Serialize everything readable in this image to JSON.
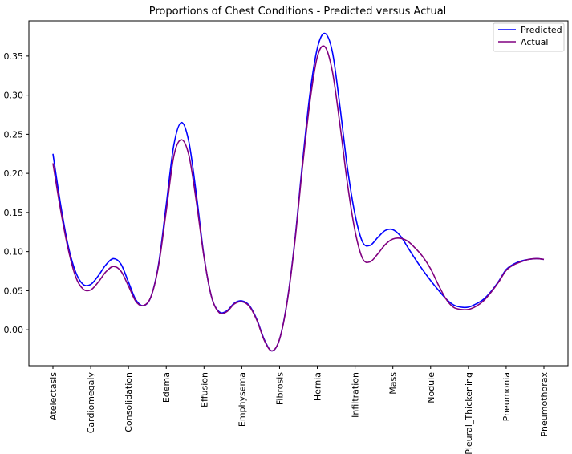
{
  "chart_data": {
    "type": "line",
    "title": "Proportions of Chest Conditions - Predicted versus Actual",
    "xlabel": "",
    "ylabel": "",
    "categories": [
      "Atelectasis",
      "Cardiomegaly",
      "Consolidation",
      "Edema",
      "Effusion",
      "Emphysema",
      "Fibrosis",
      "Hernia",
      "Infiltration",
      "Mass",
      "Nodule",
      "Pleural_Thickening",
      "Pneumonia",
      "Pneumothorax"
    ],
    "ylim": [
      -0.046,
      0.395
    ],
    "yticks": [
      0.0,
      0.05,
      0.1,
      0.15,
      0.2,
      0.25,
      0.3,
      0.35
    ],
    "ytick_labels": [
      "0.00",
      "0.05",
      "0.10",
      "0.15",
      "0.20",
      "0.25",
      "0.30",
      "0.35"
    ],
    "grid": false,
    "legend_position": "top-right",
    "series": [
      {
        "name": "Predicted",
        "color": "#0000ff",
        "x": [
          0,
          0.2,
          0.4,
          0.6,
          0.8,
          1.0,
          1.2,
          1.4,
          1.6,
          1.8,
          2.0,
          2.2,
          2.4,
          2.6,
          2.8,
          3.0,
          3.2,
          3.4,
          3.6,
          3.8,
          4.0,
          4.2,
          4.4,
          4.6,
          4.8,
          5.0,
          5.2,
          5.4,
          5.6,
          5.8,
          6.0,
          6.2,
          6.4,
          6.6,
          6.8,
          7.0,
          7.2,
          7.4,
          7.6,
          7.8,
          8.0,
          8.2,
          8.4,
          8.6,
          8.8,
          9.0,
          9.2,
          9.4,
          9.6,
          9.8,
          10.0,
          10.2,
          10.4,
          10.6,
          10.8,
          11.0,
          11.2,
          11.4,
          11.6,
          11.8,
          12.0,
          12.2,
          12.4,
          12.6,
          12.8,
          13.0
        ],
        "y": [
          0.225,
          0.161,
          0.108,
          0.074,
          0.058,
          0.058,
          0.069,
          0.083,
          0.091,
          0.084,
          0.061,
          0.038,
          0.031,
          0.043,
          0.085,
          0.16,
          0.236,
          0.265,
          0.24,
          0.172,
          0.094,
          0.042,
          0.023,
          0.024,
          0.034,
          0.037,
          0.031,
          0.013,
          -0.013,
          -0.027,
          -0.012,
          0.036,
          0.112,
          0.21,
          0.3,
          0.36,
          0.379,
          0.355,
          0.285,
          0.206,
          0.147,
          0.112,
          0.108,
          0.118,
          0.127,
          0.128,
          0.12,
          0.105,
          0.09,
          0.076,
          0.063,
          0.051,
          0.04,
          0.032,
          0.029,
          0.029,
          0.033,
          0.039,
          0.049,
          0.062,
          0.077,
          0.084,
          0.088,
          0.09,
          0.091,
          0.09
        ]
      },
      {
        "name": "Actual",
        "color": "#800080",
        "x": [
          0,
          0.2,
          0.4,
          0.6,
          0.8,
          1.0,
          1.2,
          1.4,
          1.6,
          1.8,
          2.0,
          2.2,
          2.4,
          2.6,
          2.8,
          3.0,
          3.2,
          3.4,
          3.6,
          3.8,
          4.0,
          4.2,
          4.4,
          4.6,
          4.8,
          5.0,
          5.2,
          5.4,
          5.6,
          5.8,
          6.0,
          6.2,
          6.4,
          6.6,
          6.8,
          7.0,
          7.2,
          7.4,
          7.6,
          7.8,
          8.0,
          8.2,
          8.4,
          8.6,
          8.8,
          9.0,
          9.2,
          9.4,
          9.6,
          9.8,
          10.0,
          10.2,
          10.4,
          10.6,
          10.8,
          11.0,
          11.2,
          11.4,
          11.6,
          11.8,
          12.0,
          12.2,
          12.4,
          12.6,
          12.8,
          13.0
        ],
        "y": [
          0.213,
          0.154,
          0.104,
          0.068,
          0.052,
          0.051,
          0.061,
          0.074,
          0.081,
          0.075,
          0.056,
          0.036,
          0.031,
          0.043,
          0.083,
          0.152,
          0.222,
          0.243,
          0.223,
          0.163,
          0.093,
          0.042,
          0.022,
          0.023,
          0.033,
          0.036,
          0.03,
          0.012,
          -0.014,
          -0.027,
          -0.012,
          0.035,
          0.11,
          0.205,
          0.29,
          0.349,
          0.362,
          0.33,
          0.262,
          0.186,
          0.126,
          0.091,
          0.087,
          0.097,
          0.109,
          0.116,
          0.117,
          0.113,
          0.104,
          0.093,
          0.078,
          0.058,
          0.04,
          0.029,
          0.026,
          0.026,
          0.03,
          0.037,
          0.048,
          0.061,
          0.076,
          0.083,
          0.087,
          0.09,
          0.091,
          0.09
        ]
      }
    ]
  }
}
